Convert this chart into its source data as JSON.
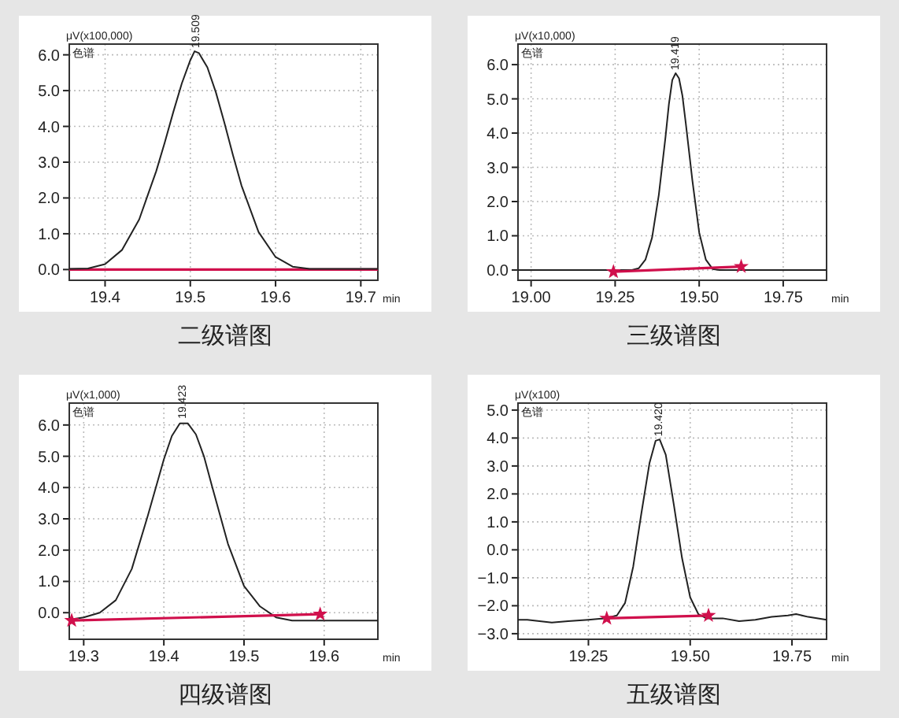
{
  "chart_data": [
    {
      "type": "line",
      "title": "二级谱图",
      "ylabel": "μV(x100,000)",
      "xlabel": "min",
      "annotations": [
        "色谱",
        {
          "text": "19.509",
          "x": 19.505,
          "y": 6.1
        }
      ],
      "grid": true,
      "xlim": [
        19.358,
        19.72
      ],
      "ylim": [
        -0.3,
        6.3
      ],
      "xticks": [
        19.4,
        19.5,
        19.6,
        19.7
      ],
      "yticks": [
        {
          "value": 0,
          "label": "0.0"
        },
        {
          "value": 1,
          "label": "1.0"
        },
        {
          "value": 2,
          "label": "2.0"
        },
        {
          "value": 3,
          "label": "3.0"
        },
        {
          "value": 4,
          "label": "4.0"
        },
        {
          "value": 5,
          "label": "5.0"
        },
        {
          "value": 6,
          "label": "6.0"
        }
      ],
      "series": [
        {
          "color": "#d0104c",
          "x": [
            19.358,
            19.72
          ],
          "values": [
            0.0,
            0.0
          ]
        },
        {
          "color": "#222222",
          "x": [
            19.358,
            19.38,
            19.4,
            19.42,
            19.44,
            19.46,
            19.47,
            19.48,
            19.49,
            19.5,
            19.505,
            19.51,
            19.52,
            19.53,
            19.54,
            19.55,
            19.56,
            19.58,
            19.6,
            19.62,
            19.64,
            19.72
          ],
          "values": [
            0.02,
            0.03,
            0.15,
            0.55,
            1.4,
            2.75,
            3.55,
            4.4,
            5.2,
            5.85,
            6.1,
            6.05,
            5.65,
            4.95,
            4.1,
            3.2,
            2.35,
            1.05,
            0.35,
            0.08,
            0.02,
            0.02
          ]
        }
      ]
    },
    {
      "type": "line",
      "title": "三级谱图",
      "ylabel": "μV(x10,000)",
      "xlabel": "min",
      "annotations": [
        "色谱",
        {
          "text": "19.419",
          "x": 19.425,
          "y": 5.75
        }
      ],
      "grid": true,
      "xlim": [
        18.961,
        19.879
      ],
      "ylim": [
        -0.3,
        6.6
      ],
      "xticks": [
        {
          "value": 19.0,
          "label": "19.00"
        },
        {
          "value": 19.25,
          "label": "19.25"
        },
        {
          "value": 19.5,
          "label": "19.50"
        },
        {
          "value": 19.75,
          "label": "19.75"
        }
      ],
      "yticks": [
        {
          "value": 0,
          "label": "0.0"
        },
        {
          "value": 1,
          "label": "1.0"
        },
        {
          "value": 2,
          "label": "2.0"
        },
        {
          "value": 3,
          "label": "3.0"
        },
        {
          "value": 4,
          "label": "4.0"
        },
        {
          "value": 5,
          "label": "5.0"
        },
        {
          "value": 6,
          "label": "6.0"
        }
      ],
      "series": [
        {
          "color": "#222222",
          "x": [
            18.961,
            19.3,
            19.32,
            19.34,
            19.36,
            19.38,
            19.4,
            19.41,
            19.42,
            19.43,
            19.44,
            19.45,
            19.46,
            19.48,
            19.5,
            19.52,
            19.54,
            19.56,
            19.879
          ],
          "values": [
            0,
            0,
            0.05,
            0.3,
            0.95,
            2.2,
            3.9,
            4.85,
            5.55,
            5.75,
            5.6,
            5.1,
            4.3,
            2.6,
            1.1,
            0.3,
            0.03,
            0,
            0
          ]
        },
        {
          "color": "#d0104c",
          "marker": "star",
          "x": [
            19.245,
            19.625
          ],
          "values": [
            -0.05,
            0.1
          ]
        }
      ]
    },
    {
      "type": "line",
      "title": "四级谱图",
      "ylabel": "μV(x1,000)",
      "xlabel": "min",
      "annotations": [
        "色谱",
        {
          "text": "19.423",
          "x": 19.421,
          "y": 6.1
        }
      ],
      "grid": true,
      "xlim": [
        19.282,
        19.667
      ],
      "ylim": [
        -0.85,
        6.7
      ],
      "xticks": [
        19.3,
        19.4,
        19.5,
        19.6
      ],
      "yticks": [
        {
          "value": 0,
          "label": "0.0"
        },
        {
          "value": 1,
          "label": "1.0"
        },
        {
          "value": 2,
          "label": "2.0"
        },
        {
          "value": 3,
          "label": "3.0"
        },
        {
          "value": 4,
          "label": "4.0"
        },
        {
          "value": 5,
          "label": "5.0"
        },
        {
          "value": 6,
          "label": "6.0"
        }
      ],
      "series": [
        {
          "color": "#222222",
          "x": [
            19.282,
            19.3,
            19.32,
            19.34,
            19.36,
            19.38,
            19.4,
            19.41,
            19.42,
            19.43,
            19.44,
            19.45,
            19.46,
            19.48,
            19.5,
            19.52,
            19.54,
            19.56,
            19.667
          ],
          "values": [
            -0.22,
            -0.15,
            0.0,
            0.4,
            1.4,
            3.1,
            4.9,
            5.65,
            6.05,
            6.05,
            5.7,
            5.0,
            4.05,
            2.2,
            0.85,
            0.2,
            -0.15,
            -0.25,
            -0.25
          ]
        },
        {
          "color": "#d0104c",
          "marker": "star",
          "x": [
            19.285,
            19.595
          ],
          "values": [
            -0.25,
            -0.05
          ]
        }
      ]
    },
    {
      "type": "line",
      "title": "五级谱图",
      "ylabel": "μV(x100)",
      "xlabel": "min",
      "annotations": [
        "色谱",
        {
          "text": "19.420",
          "x": 19.42,
          "y": 3.95
        }
      ],
      "grid": true,
      "xlim": [
        19.077,
        19.835
      ],
      "ylim": [
        -3.2,
        5.25
      ],
      "xticks": [
        {
          "value": 19.25,
          "label": "19.25"
        },
        {
          "value": 19.5,
          "label": "19.50"
        },
        {
          "value": 19.75,
          "label": "19.75"
        }
      ],
      "yticks": [
        {
          "value": -3,
          "label": "−3.0"
        },
        {
          "value": -2,
          "label": "−2.0"
        },
        {
          "value": -1,
          "label": "−1.0"
        },
        {
          "value": 0,
          "label": "0.0"
        },
        {
          "value": 1,
          "label": "1.0"
        },
        {
          "value": 2,
          "label": "2.0"
        },
        {
          "value": 3,
          "label": "3.0"
        },
        {
          "value": 4,
          "label": "4.0"
        },
        {
          "value": 5,
          "label": "5.0"
        }
      ],
      "series": [
        {
          "color": "#222222",
          "x": [
            19.077,
            19.1,
            19.13,
            19.16,
            19.2,
            19.25,
            19.29,
            19.32,
            19.34,
            19.36,
            19.38,
            19.4,
            19.415,
            19.425,
            19.44,
            19.46,
            19.48,
            19.5,
            19.52,
            19.54,
            19.58,
            19.62,
            19.66,
            19.7,
            19.74,
            19.76,
            19.79,
            19.835
          ],
          "values": [
            -2.5,
            -2.5,
            -2.55,
            -2.6,
            -2.55,
            -2.5,
            -2.45,
            -2.35,
            -1.9,
            -0.6,
            1.3,
            3.1,
            3.9,
            3.95,
            3.4,
            1.6,
            -0.3,
            -1.7,
            -2.3,
            -2.45,
            -2.45,
            -2.55,
            -2.5,
            -2.4,
            -2.35,
            -2.3,
            -2.4,
            -2.5
          ]
        },
        {
          "color": "#d0104c",
          "marker": "star",
          "x": [
            19.295,
            19.545
          ],
          "values": [
            -2.45,
            -2.35
          ]
        }
      ]
    }
  ]
}
